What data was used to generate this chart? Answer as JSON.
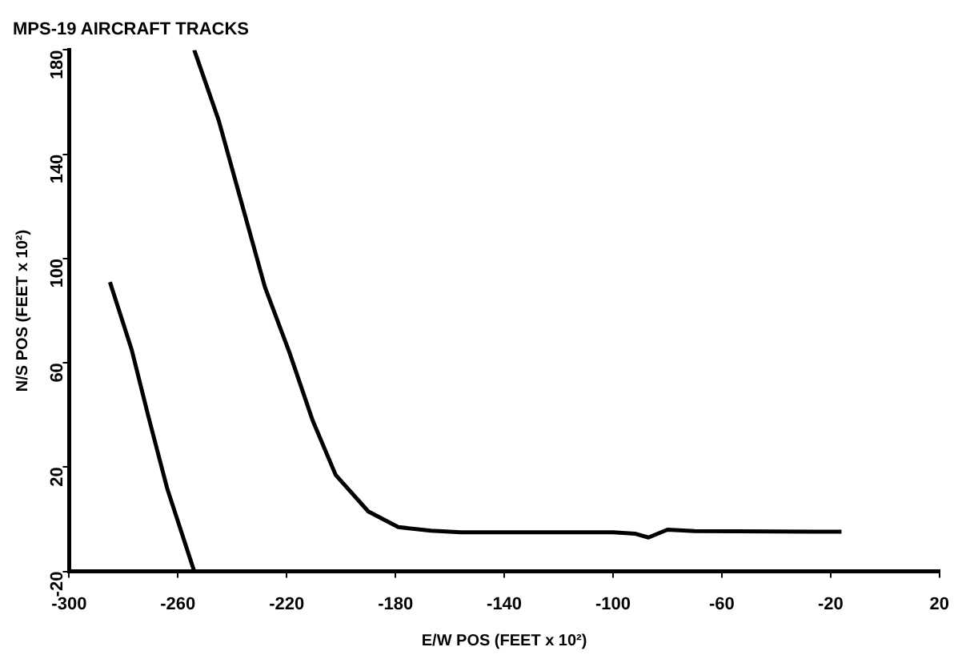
{
  "chart_data": {
    "type": "line",
    "title": "MPS-19 AIRCRAFT TRACKS",
    "xlabel": "E/W POS (FEET x 10²)",
    "ylabel": "N/S POS (FEET x 10²)",
    "xlim": [
      -300,
      20
    ],
    "xticks": [
      -300,
      -260,
      -220,
      -180,
      -140,
      -100,
      -60,
      -20,
      20
    ],
    "ylim": [
      -20,
      180
    ],
    "yticks": [
      -20,
      20,
      60,
      100,
      140,
      180
    ],
    "grid": false,
    "legend": false,
    "marker": "none",
    "line_style": "solid",
    "series": [
      {
        "color": "#000000",
        "x": [
          -285,
          -277,
          -271,
          -264,
          -254
        ],
        "values": [
          91,
          65,
          40,
          12,
          -20
        ]
      },
      {
        "color": "#000000",
        "x": [
          -254,
          -245,
          -236.5,
          -228,
          -219,
          -210.5,
          -202,
          -190,
          -179,
          -167,
          -156,
          -140,
          -100,
          -92,
          -87,
          -80,
          -70,
          -40,
          -16
        ],
        "values": [
          180,
          153,
          121,
          89,
          64,
          38,
          17,
          3,
          -3,
          -4.4,
          -5,
          -5,
          -5,
          -5.5,
          -7,
          -4,
          -4.5,
          -4.7,
          -4.8
        ]
      }
    ]
  }
}
